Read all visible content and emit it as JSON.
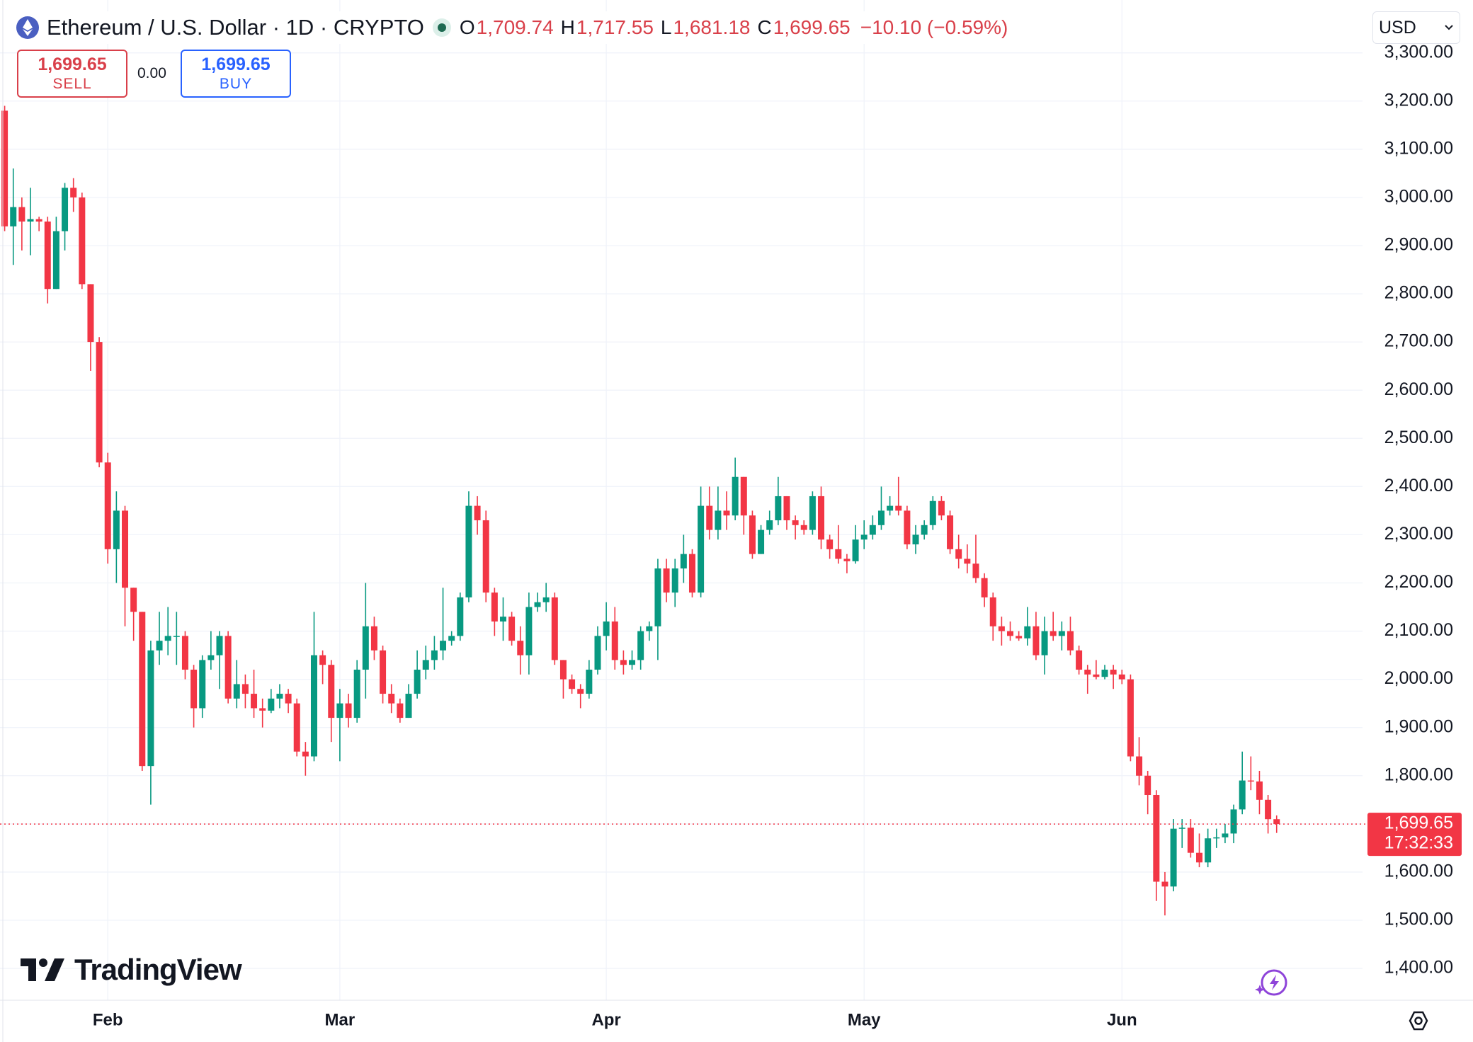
{
  "header": {
    "symbol": "Ethereum / U.S. Dollar · 1D · CRYPTO",
    "ohlc": [
      {
        "key": "O",
        "value": "1,709.74"
      },
      {
        "key": "H",
        "value": "1,717.55"
      },
      {
        "key": "L",
        "value": "1,681.18"
      },
      {
        "key": "C",
        "value": "1,699.65"
      }
    ],
    "change": "−10.10 (−0.59%)"
  },
  "trade": {
    "sell_price": "1,699.65",
    "sell": "SELL",
    "spread": "0.00",
    "buy_price": "1,699.65",
    "buy": "BUY"
  },
  "currency": "USD",
  "brand": "TradingView",
  "chart_data": {
    "type": "candlestick",
    "up_color": "#089981",
    "down_color": "#f23645",
    "categories": [
      null,
      null,
      null,
      null,
      null,
      null,
      null,
      null,
      null,
      null,
      null,
      null,
      "Feb",
      null,
      null,
      null,
      null,
      null,
      null,
      null,
      null,
      null,
      null,
      null,
      null,
      null,
      null,
      null,
      null,
      null,
      null,
      null,
      null,
      null,
      null,
      null,
      null,
      null,
      null,
      "Mar",
      null,
      null,
      null,
      null,
      null,
      null,
      null,
      null,
      null,
      null,
      null,
      null,
      null,
      null,
      null,
      null,
      null,
      null,
      null,
      null,
      null,
      null,
      null,
      null,
      null,
      null,
      null,
      null,
      null,
      null,
      "Apr",
      null,
      null,
      null,
      null,
      null,
      null,
      null,
      null,
      null,
      null,
      null,
      null,
      null,
      null,
      null,
      null,
      null,
      null,
      null,
      null,
      null,
      null,
      null,
      null,
      null,
      null,
      null,
      null,
      null,
      "May",
      null,
      null,
      null,
      null,
      null,
      null,
      null,
      null,
      null,
      null,
      null,
      null,
      null,
      null,
      null,
      null,
      null,
      null,
      null,
      null,
      null,
      null,
      null,
      null,
      null,
      null,
      null,
      null,
      null,
      "Jun",
      null,
      null,
      null,
      null,
      null,
      null,
      null,
      null,
      null,
      null,
      null,
      null,
      null,
      null,
      null,
      null,
      null,
      null
    ],
    "open": [
      3180,
      2940,
      2980,
      2950,
      2955,
      2950,
      2810,
      2930,
      3020,
      3000,
      2820,
      2700,
      2450,
      2270,
      2350,
      2190,
      2140,
      1820,
      2060,
      2080,
      2090,
      2090,
      2020,
      1940,
      2040,
      2050,
      2090,
      1960,
      1990,
      1970,
      1940,
      1935,
      1960,
      1970,
      1950,
      1850,
      1840,
      2050,
      2030,
      1920,
      1950,
      1920,
      2020,
      2110,
      2060,
      1970,
      1950,
      1920,
      1970,
      2020,
      2040,
      2060,
      2080,
      2090,
      2170,
      2360,
      2330,
      2180,
      2120,
      2130,
      2080,
      2050,
      2150,
      2160,
      2170,
      2040,
      2000,
      1980,
      1970,
      2020,
      2090,
      2120,
      2040,
      2030,
      2040,
      2100,
      2110,
      2230,
      2180,
      2230,
      2260,
      2180,
      2360,
      2310,
      2350,
      2340,
      2420,
      2340,
      2260,
      2310,
      2330,
      2380,
      2330,
      2320,
      2310,
      2380,
      2290,
      2270,
      2250,
      2245,
      2290,
      2300,
      2320,
      2350,
      2360,
      2350,
      2280,
      2300,
      2320,
      2370,
      2340,
      2270,
      2250,
      2240,
      2210,
      2170,
      2110,
      2100,
      2090,
      2085,
      2110,
      2050,
      2100,
      2090,
      2100,
      2060,
      2020,
      2010,
      2005,
      2020,
      2010,
      2000,
      1840,
      1800,
      1760,
      1580,
      1570,
      1690,
      1692,
      1640,
      1620,
      1670,
      1672,
      1680,
      1730,
      1790,
      1788,
      1750,
      1709.74
    ],
    "high": [
      3190,
      3060,
      3000,
      3020,
      2960,
      2960,
      2960,
      3030,
      3040,
      3010,
      2820,
      2710,
      2470,
      2390,
      2360,
      2190,
      2140,
      2080,
      2140,
      2150,
      2140,
      2100,
      2030,
      2050,
      2100,
      2100,
      2100,
      2040,
      2010,
      2020,
      1960,
      1980,
      1990,
      1980,
      1960,
      1870,
      2140,
      2060,
      2040,
      1980,
      1970,
      2040,
      2200,
      2130,
      2070,
      1990,
      1960,
      1990,
      2060,
      2070,
      2090,
      2190,
      2100,
      2180,
      2390,
      2380,
      2350,
      2190,
      2170,
      2140,
      2110,
      2180,
      2180,
      2200,
      2180,
      2040,
      2010,
      1990,
      2040,
      2110,
      2160,
      2150,
      2060,
      2060,
      2110,
      2120,
      2250,
      2250,
      2250,
      2300,
      2270,
      2400,
      2400,
      2400,
      2390,
      2460,
      2420,
      2350,
      2320,
      2350,
      2420,
      2380,
      2340,
      2330,
      2390,
      2400,
      2300,
      2320,
      2260,
      2320,
      2330,
      2340,
      2400,
      2380,
      2420,
      2360,
      2320,
      2330,
      2380,
      2380,
      2350,
      2300,
      2280,
      2300,
      2220,
      2180,
      2130,
      2120,
      2100,
      2150,
      2140,
      2130,
      2140,
      2120,
      2130,
      2070,
      2030,
      2040,
      2030,
      2030,
      2020,
      2010,
      1880,
      1810,
      1770,
      1600,
      1710,
      1710,
      1710,
      1680,
      1690,
      1690,
      1700,
      1740,
      1850,
      1840,
      1810,
      1760,
      1717.55
    ],
    "low": [
      2930,
      2860,
      2890,
      2880,
      2930,
      2780,
      2810,
      2890,
      2970,
      2810,
      2640,
      2440,
      2240,
      2200,
      2110,
      2080,
      1810,
      1740,
      2030,
      2050,
      2030,
      2000,
      1900,
      1920,
      2020,
      1980,
      1950,
      1940,
      1940,
      1920,
      1900,
      1930,
      1940,
      1930,
      1840,
      1800,
      1830,
      1990,
      1870,
      1830,
      1900,
      1910,
      1960,
      2040,
      1950,
      1930,
      1910,
      1920,
      1960,
      2000,
      2020,
      2040,
      2070,
      2080,
      2160,
      2300,
      2160,
      2090,
      2080,
      2070,
      2010,
      2010,
      2140,
      2140,
      2030,
      1960,
      1970,
      1940,
      1960,
      2010,
      2060,
      2020,
      2010,
      2020,
      2020,
      2080,
      2040,
      2160,
      2150,
      2200,
      2170,
      2170,
      2290,
      2290,
      2310,
      2330,
      2300,
      2250,
      2260,
      2300,
      2320,
      2310,
      2290,
      2300,
      2300,
      2270,
      2250,
      2240,
      2220,
      2240,
      2270,
      2290,
      2310,
      2340,
      2340,
      2270,
      2260,
      2290,
      2310,
      2330,
      2260,
      2230,
      2220,
      2200,
      2150,
      2080,
      2070,
      2080,
      2080,
      2070,
      2040,
      2010,
      2080,
      2060,
      2050,
      2010,
      1970,
      2000,
      2000,
      1980,
      1990,
      1830,
      1780,
      1720,
      1540,
      1510,
      1560,
      1650,
      1630,
      1610,
      1610,
      1650,
      1660,
      1660,
      1720,
      1770,
      1720,
      1680,
      1681.18
    ],
    "close": [
      2940,
      2980,
      2950,
      2955,
      2950,
      2810,
      2930,
      3020,
      3000,
      2820,
      2700,
      2450,
      2270,
      2350,
      2190,
      2140,
      1820,
      2060,
      2080,
      2090,
      2090,
      2020,
      1940,
      2040,
      2050,
      2090,
      1960,
      1990,
      1970,
      1940,
      1935,
      1960,
      1970,
      1950,
      1850,
      1840,
      2050,
      2030,
      1920,
      1950,
      1920,
      2020,
      2110,
      2060,
      1970,
      1950,
      1920,
      1970,
      2020,
      2040,
      2060,
      2080,
      2090,
      2170,
      2360,
      2330,
      2180,
      2120,
      2130,
      2080,
      2050,
      2150,
      2160,
      2170,
      2040,
      2000,
      1980,
      1970,
      2020,
      2090,
      2120,
      2040,
      2030,
      2040,
      2100,
      2110,
      2230,
      2180,
      2230,
      2260,
      2180,
      2360,
      2310,
      2350,
      2340,
      2420,
      2340,
      2260,
      2310,
      2330,
      2380,
      2330,
      2320,
      2310,
      2380,
      2290,
      2270,
      2250,
      2245,
      2290,
      2300,
      2320,
      2350,
      2360,
      2350,
      2280,
      2300,
      2320,
      2370,
      2340,
      2270,
      2250,
      2240,
      2210,
      2170,
      2110,
      2100,
      2090,
      2085,
      2110,
      2050,
      2100,
      2090,
      2100,
      2060,
      2020,
      2010,
      2005,
      2020,
      2010,
      2000,
      1840,
      1800,
      1760,
      1580,
      1570,
      1690,
      1692,
      1640,
      1620,
      1670,
      1672,
      1680,
      1730,
      1790,
      1788,
      1750,
      1709.74,
      1699.65
    ],
    "ylim": [
      1334,
      3400
    ],
    "yticks": [
      {
        "value": 1400,
        "label": "1,400.00"
      },
      {
        "value": 1500,
        "label": "1,500.00"
      },
      {
        "value": 1600,
        "label": "1,600.00"
      },
      {
        "value": 1700,
        "label": "1,700.00"
      },
      {
        "value": 1800,
        "label": "1,800.00"
      },
      {
        "value": 1900,
        "label": "1,900.00"
      },
      {
        "value": 2000,
        "label": "2,000.00"
      },
      {
        "value": 2100,
        "label": "2,100.00"
      },
      {
        "value": 2200,
        "label": "2,200.00"
      },
      {
        "value": 2300,
        "label": "2,300.00"
      },
      {
        "value": 2400,
        "label": "2,400.00"
      },
      {
        "value": 2500,
        "label": "2,500.00"
      },
      {
        "value": 2600,
        "label": "2,600.00"
      },
      {
        "value": 2700,
        "label": "2,700.00"
      },
      {
        "value": 2800,
        "label": "2,800.00"
      },
      {
        "value": 2900,
        "label": "2,900.00"
      },
      {
        "value": 3000,
        "label": "3,000.00"
      },
      {
        "value": 3100,
        "label": "3,100.00"
      },
      {
        "value": 3200,
        "label": "3,200.00"
      },
      {
        "value": 3300,
        "label": "3,300.00"
      }
    ],
    "grid": true,
    "last_price": {
      "value": 1699.65,
      "label": "1,699.65"
    },
    "countdown": "17:32:33"
  }
}
